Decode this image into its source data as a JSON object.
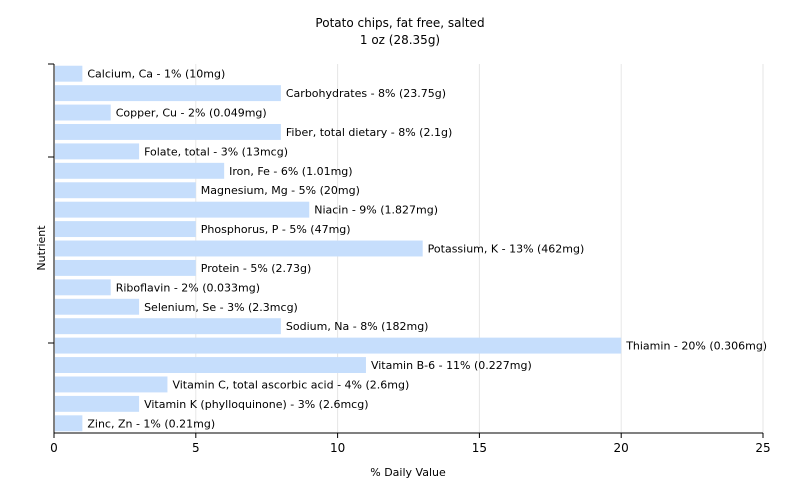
{
  "chart_data": {
    "type": "bar",
    "orientation": "horizontal",
    "title": "Potato chips, fat free, salted",
    "subtitle": "1 oz (28.35g)",
    "xlabel": "% Daily Value",
    "ylabel": "Nutrient",
    "xlim": [
      0,
      25
    ],
    "xticks": [
      0,
      5,
      10,
      15,
      20,
      25
    ],
    "grid": true,
    "bar_color": "#c6defc",
    "categories": [
      "Calcium, Ca",
      "Carbohydrates",
      "Copper, Cu",
      "Fiber, total dietary",
      "Folate, total",
      "Iron, Fe",
      "Magnesium, Mg",
      "Niacin",
      "Phosphorus, P",
      "Potassium, K",
      "Protein",
      "Riboflavin",
      "Selenium, Se",
      "Sodium, Na",
      "Thiamin",
      "Vitamin B-6",
      "Vitamin C, total ascorbic acid",
      "Vitamin K (phylloquinone)",
      "Zinc, Zn"
    ],
    "values": [
      1,
      8,
      2,
      8,
      3,
      6,
      5,
      9,
      5,
      13,
      5,
      2,
      3,
      8,
      20,
      11,
      4,
      3,
      1
    ],
    "labels": [
      "Calcium, Ca - 1% (10mg)",
      "Carbohydrates - 8% (23.75g)",
      "Copper, Cu - 2% (0.049mg)",
      "Fiber, total dietary - 8% (2.1g)",
      "Folate, total - 3% (13mcg)",
      "Iron, Fe - 6% (1.01mg)",
      "Magnesium, Mg - 5% (20mg)",
      "Niacin - 9% (1.827mg)",
      "Phosphorus, P - 5% (47mg)",
      "Potassium, K - 13% (462mg)",
      "Protein - 5% (2.73g)",
      "Riboflavin - 2% (0.033mg)",
      "Selenium, Se - 3% (2.3mcg)",
      "Sodium, Na - 8% (182mg)",
      "Thiamin - 20% (0.306mg)",
      "Vitamin B-6 - 11% (0.227mg)",
      "Vitamin C, total ascorbic acid - 4% (2.6mg)",
      "Vitamin K (phylloquinone) - 3% (2.6mcg)",
      "Zinc, Zn - 1% (0.21mg)"
    ]
  }
}
